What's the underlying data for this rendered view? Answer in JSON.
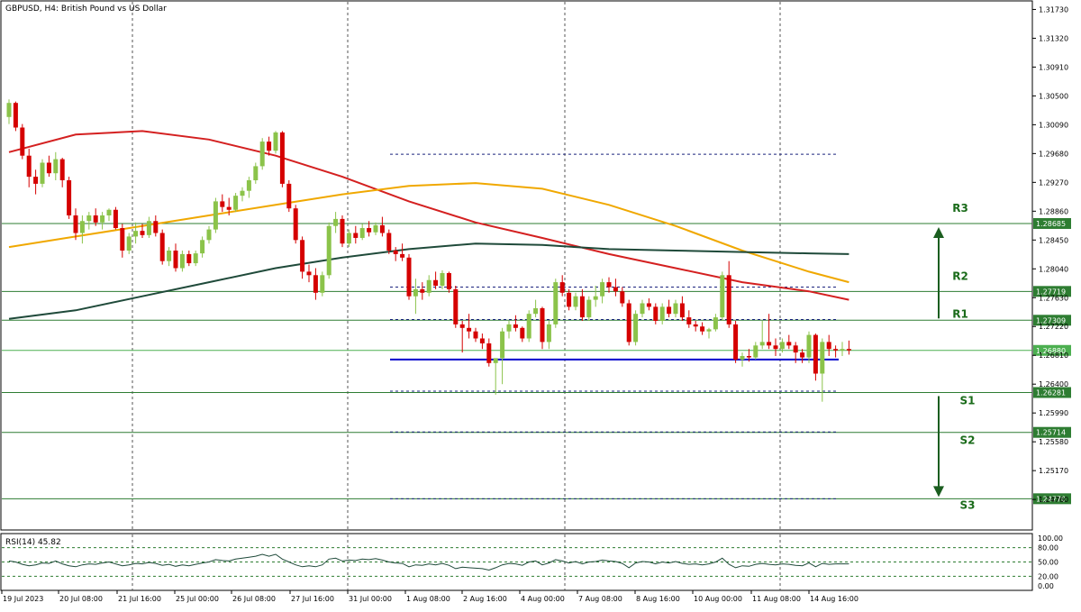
{
  "chart_data": {
    "type": "candlestick",
    "title": "GBPUSD, H4:  British Pound vs US Dollar",
    "symbol": "GBPUSD",
    "timeframe": "H4",
    "description": "British Pound vs US Dollar",
    "ylim": [
      1.243,
      1.318
    ],
    "y_ticks": [
      "1.31730",
      "1.31320",
      "1.30910",
      "1.30500",
      "1.30090",
      "1.29680",
      "1.29270",
      "1.28860",
      "1.28450",
      "1.28040",
      "1.27630",
      "1.27220",
      "1.26810",
      "1.26400",
      "1.25990",
      "1.25580",
      "1.25170",
      "1.24760"
    ],
    "x_ticks": [
      "19 Jul 2023",
      "20 Jul 08:00",
      "21 Jul 16:00",
      "25 Jul 00:00",
      "26 Jul 08:00",
      "27 Jul 16:00",
      "31 Jul 00:00",
      "1 Aug 08:00",
      "2 Aug 16:00",
      "4 Aug 00:00",
      "7 Aug 08:00",
      "8 Aug 16:00",
      "10 Aug 00:00",
      "11 Aug 08:00",
      "14 Aug 16:00"
    ],
    "current_price": "1.26880",
    "levels": [
      {
        "name": "R3",
        "price": 1.28685,
        "label": "1.28685"
      },
      {
        "name": "R2",
        "price": 1.27719,
        "label": "1.27719"
      },
      {
        "name": "R1",
        "price": 1.27309,
        "label": "1.27309"
      },
      {
        "name": "S1",
        "price": 1.26281,
        "label": "1.26281"
      },
      {
        "name": "S2",
        "price": 1.25714,
        "label": "1.25714"
      },
      {
        "name": "S3",
        "price": 1.2477,
        "label": "1.24770"
      }
    ],
    "range_support": 1.2675,
    "dotted_levels": [
      1.2967,
      1.2778,
      1.2732,
      1.263,
      1.2572,
      1.2477
    ],
    "candles": [
      [
        1.302,
        1.3045,
        1.301,
        1.304
      ],
      [
        1.304,
        1.3042,
        1.3,
        1.3005
      ],
      [
        1.3005,
        1.301,
        1.296,
        1.2965
      ],
      [
        1.2965,
        1.2975,
        1.292,
        1.2935
      ],
      [
        1.2935,
        1.2945,
        1.291,
        1.2925
      ],
      [
        1.2925,
        1.296,
        1.292,
        1.2955
      ],
      [
        1.2955,
        1.2965,
        1.2935,
        1.294
      ],
      [
        1.294,
        1.297,
        1.293,
        1.296
      ],
      [
        1.296,
        1.2962,
        1.292,
        1.293
      ],
      [
        1.293,
        1.2935,
        1.2875,
        1.288
      ],
      [
        1.288,
        1.289,
        1.2845,
        1.2855
      ],
      [
        1.2855,
        1.288,
        1.284,
        1.2872
      ],
      [
        1.2872,
        1.2885,
        1.286,
        1.288
      ],
      [
        1.288,
        1.289,
        1.2865,
        1.287
      ],
      [
        1.287,
        1.2885,
        1.286,
        1.288
      ],
      [
        1.288,
        1.289,
        1.2872,
        1.2888
      ],
      [
        1.2888,
        1.2892,
        1.286,
        1.2862
      ],
      [
        1.2862,
        1.2868,
        1.282,
        1.283
      ],
      [
        1.283,
        1.2855,
        1.2825,
        1.285
      ],
      [
        1.285,
        1.287,
        1.284,
        1.2858
      ],
      [
        1.2858,
        1.2868,
        1.2848,
        1.2852
      ],
      [
        1.2852,
        1.2878,
        1.2848,
        1.2872
      ],
      [
        1.2872,
        1.288,
        1.285,
        1.2855
      ],
      [
        1.2855,
        1.286,
        1.281,
        1.2815
      ],
      [
        1.2815,
        1.2835,
        1.2808,
        1.283
      ],
      [
        1.283,
        1.284,
        1.28,
        1.2805
      ],
      [
        1.2805,
        1.283,
        1.28,
        1.2825
      ],
      [
        1.2825,
        1.283,
        1.2808,
        1.2812
      ],
      [
        1.2812,
        1.283,
        1.2808,
        1.2826
      ],
      [
        1.2826,
        1.285,
        1.282,
        1.2845
      ],
      [
        1.2845,
        1.2865,
        1.284,
        1.286
      ],
      [
        1.286,
        1.2905,
        1.2855,
        1.29
      ],
      [
        1.29,
        1.291,
        1.2885,
        1.2892
      ],
      [
        1.2892,
        1.2905,
        1.288,
        1.2888
      ],
      [
        1.2888,
        1.2912,
        1.2885,
        1.2908
      ],
      [
        1.2908,
        1.292,
        1.29,
        1.2915
      ],
      [
        1.2915,
        1.2935,
        1.2905,
        1.293
      ],
      [
        1.293,
        1.2955,
        1.2925,
        1.295
      ],
      [
        1.295,
        1.299,
        1.2945,
        1.2985
      ],
      [
        1.2985,
        1.2992,
        1.2965,
        1.2972
      ],
      [
        1.2972,
        1.3,
        1.2968,
        1.2998
      ],
      [
        1.2998,
        1.3,
        1.292,
        1.2925
      ],
      [
        1.2925,
        1.293,
        1.2885,
        1.289
      ],
      [
        1.289,
        1.2895,
        1.284,
        1.2845
      ],
      [
        1.2845,
        1.285,
        1.279,
        1.28
      ],
      [
        1.28,
        1.281,
        1.2785,
        1.2795
      ],
      [
        1.2795,
        1.2805,
        1.276,
        1.277
      ],
      [
        1.277,
        1.28,
        1.2765,
        1.2795
      ],
      [
        1.2795,
        1.287,
        1.279,
        1.2865
      ],
      [
        1.2865,
        1.2885,
        1.2855,
        1.2875
      ],
      [
        1.2875,
        1.288,
        1.2835,
        1.284
      ],
      [
        1.284,
        1.286,
        1.2835,
        1.2855
      ],
      [
        1.2855,
        1.2865,
        1.284,
        1.2848
      ],
      [
        1.2848,
        1.2868,
        1.2845,
        1.2862
      ],
      [
        1.2862,
        1.2872,
        1.285,
        1.2856
      ],
      [
        1.2856,
        1.287,
        1.2852,
        1.2866
      ],
      [
        1.2866,
        1.2878,
        1.285,
        1.2855
      ],
      [
        1.2855,
        1.286,
        1.2825,
        1.283
      ],
      [
        1.283,
        1.2835,
        1.2815,
        1.2825
      ],
      [
        1.2825,
        1.284,
        1.2815,
        1.282
      ],
      [
        1.282,
        1.2825,
        1.276,
        1.2765
      ],
      [
        1.2765,
        1.279,
        1.274,
        1.2775
      ],
      [
        1.2775,
        1.2785,
        1.276,
        1.277
      ],
      [
        1.277,
        1.2795,
        1.2765,
        1.2788
      ],
      [
        1.2788,
        1.28,
        1.2775,
        1.278
      ],
      [
        1.278,
        1.2802,
        1.2775,
        1.2798
      ],
      [
        1.2798,
        1.28,
        1.277,
        1.2775
      ],
      [
        1.2775,
        1.278,
        1.272,
        1.2725
      ],
      [
        1.2725,
        1.273,
        1.2685,
        1.272
      ],
      [
        1.272,
        1.274,
        1.2705,
        1.2715
      ],
      [
        1.2715,
        1.272,
        1.27,
        1.2705
      ],
      [
        1.2705,
        1.2712,
        1.269,
        1.2698
      ],
      [
        1.2698,
        1.2705,
        1.2665,
        1.267
      ],
      [
        1.267,
        1.2675,
        1.2625,
        1.2677
      ],
      [
        1.2677,
        1.272,
        1.264,
        1.2715
      ],
      [
        1.2715,
        1.273,
        1.2705,
        1.2725
      ],
      [
        1.2725,
        1.2738,
        1.2715,
        1.272
      ],
      [
        1.272,
        1.2722,
        1.27,
        1.2705
      ],
      [
        1.2705,
        1.2745,
        1.27,
        1.274
      ],
      [
        1.274,
        1.276,
        1.2735,
        1.2748
      ],
      [
        1.2748,
        1.275,
        1.269,
        1.27
      ],
      [
        1.27,
        1.273,
        1.269,
        1.2725
      ],
      [
        1.2725,
        1.279,
        1.272,
        1.2785
      ],
      [
        1.2785,
        1.2795,
        1.2765,
        1.277
      ],
      [
        1.277,
        1.2775,
        1.2745,
        1.275
      ],
      [
        1.275,
        1.277,
        1.2745,
        1.2765
      ],
      [
        1.2765,
        1.2775,
        1.273,
        1.2735
      ],
      [
        1.2735,
        1.2765,
        1.273,
        1.276
      ],
      [
        1.276,
        1.278,
        1.275,
        1.2765
      ],
      [
        1.2765,
        1.279,
        1.2755,
        1.2785
      ],
      [
        1.2785,
        1.2792,
        1.277,
        1.2778
      ],
      [
        1.2778,
        1.279,
        1.2765,
        1.2772
      ],
      [
        1.2772,
        1.2778,
        1.275,
        1.2755
      ],
      [
        1.2755,
        1.276,
        1.2695,
        1.27
      ],
      [
        1.27,
        1.2745,
        1.2695,
        1.274
      ],
      [
        1.274,
        1.276,
        1.2735,
        1.2755
      ],
      [
        1.2755,
        1.2762,
        1.2745,
        1.275
      ],
      [
        1.275,
        1.2755,
        1.2725,
        1.273
      ],
      [
        1.273,
        1.2755,
        1.2725,
        1.275
      ],
      [
        1.275,
        1.276,
        1.2735,
        1.274
      ],
      [
        1.274,
        1.276,
        1.2735,
        1.2755
      ],
      [
        1.2755,
        1.2765,
        1.273,
        1.2735
      ],
      [
        1.2735,
        1.2745,
        1.272,
        1.2725
      ],
      [
        1.2725,
        1.273,
        1.2715,
        1.2722
      ],
      [
        1.2722,
        1.2728,
        1.271,
        1.2715
      ],
      [
        1.2715,
        1.272,
        1.2705,
        1.2718
      ],
      [
        1.2718,
        1.274,
        1.2715,
        1.2735
      ],
      [
        1.2735,
        1.28,
        1.273,
        1.2795
      ],
      [
        1.2795,
        1.2815,
        1.272,
        1.2725
      ],
      [
        1.2725,
        1.273,
        1.267,
        1.2675
      ],
      [
        1.2675,
        1.2685,
        1.2665,
        1.268
      ],
      [
        1.268,
        1.269,
        1.2672,
        1.2678
      ],
      [
        1.2678,
        1.27,
        1.2675,
        1.2695
      ],
      [
        1.2695,
        1.273,
        1.269,
        1.27
      ],
      [
        1.27,
        1.274,
        1.269,
        1.2695
      ],
      [
        1.2695,
        1.2705,
        1.268,
        1.269
      ],
      [
        1.269,
        1.2705,
        1.2685,
        1.27
      ],
      [
        1.27,
        1.271,
        1.269,
        1.2695
      ],
      [
        1.2695,
        1.27,
        1.267,
        1.2685
      ],
      [
        1.2685,
        1.269,
        1.267,
        1.2678
      ],
      [
        1.2678,
        1.2715,
        1.267,
        1.271
      ],
      [
        1.271,
        1.2712,
        1.2645,
        1.2655
      ],
      [
        1.2655,
        1.2705,
        1.2615,
        1.27
      ],
      [
        1.27,
        1.271,
        1.268,
        1.269
      ],
      [
        1.269,
        1.2695,
        1.2678,
        1.2688
      ],
      [
        1.2688,
        1.27,
        1.268,
        1.269
      ],
      [
        1.269,
        1.2702,
        1.2682,
        1.2688
      ]
    ],
    "moving_averages": [
      {
        "name": "MA red",
        "color": "#d42020",
        "points": [
          [
            0,
            1.297
          ],
          [
            10,
            1.2995
          ],
          [
            20,
            1.3
          ],
          [
            30,
            1.2988
          ],
          [
            40,
            1.2965
          ],
          [
            50,
            1.2935
          ],
          [
            60,
            1.29
          ],
          [
            70,
            1.287
          ],
          [
            80,
            1.2848
          ],
          [
            90,
            1.2825
          ],
          [
            100,
            1.2805
          ],
          [
            110,
            1.2785
          ],
          [
            120,
            1.2772
          ],
          [
            126,
            1.276
          ]
        ]
      },
      {
        "name": "MA orange",
        "color": "#f0a800",
        "points": [
          [
            0,
            1.2835
          ],
          [
            10,
            1.285
          ],
          [
            20,
            1.2865
          ],
          [
            30,
            1.288
          ],
          [
            40,
            1.2895
          ],
          [
            50,
            1.291
          ],
          [
            60,
            1.2922
          ],
          [
            70,
            1.2926
          ],
          [
            80,
            1.2918
          ],
          [
            90,
            1.2895
          ],
          [
            100,
            1.2865
          ],
          [
            110,
            1.283
          ],
          [
            120,
            1.28
          ],
          [
            126,
            1.2785
          ]
        ]
      },
      {
        "name": "MA dark",
        "color": "#1f4a3a",
        "points": [
          [
            0,
            1.2733
          ],
          [
            10,
            1.2745
          ],
          [
            20,
            1.2765
          ],
          [
            30,
            1.2785
          ],
          [
            40,
            1.2805
          ],
          [
            50,
            1.282
          ],
          [
            60,
            1.2832
          ],
          [
            70,
            1.284
          ],
          [
            80,
            1.2838
          ],
          [
            90,
            1.2832
          ],
          [
            100,
            1.283
          ],
          [
            110,
            1.2828
          ],
          [
            120,
            1.2826
          ],
          [
            126,
            1.2825
          ]
        ]
      }
    ],
    "rsi": {
      "label": "RSI(14) 45.82",
      "ticks": [
        "100.00",
        "80.00",
        "50.00",
        "20.00",
        "0.00"
      ],
      "levels": [
        80,
        50,
        20
      ],
      "values": [
        52,
        50,
        45,
        42,
        44,
        48,
        47,
        52,
        46,
        42,
        40,
        44,
        46,
        45,
        48,
        50,
        46,
        42,
        44,
        47,
        46,
        49,
        47,
        43,
        45,
        41,
        44,
        42,
        45,
        48,
        50,
        55,
        53,
        52,
        56,
        58,
        60,
        62,
        66,
        62,
        66,
        56,
        50,
        44,
        40,
        42,
        40,
        44,
        56,
        58,
        52,
        54,
        53,
        56,
        55,
        57,
        54,
        50,
        48,
        47,
        40,
        44,
        43,
        46,
        44,
        47,
        43,
        36,
        39,
        38,
        37,
        36,
        33,
        38,
        44,
        47,
        46,
        43,
        50,
        52,
        44,
        48,
        55,
        52,
        48,
        51,
        46,
        50,
        51,
        54,
        52,
        51,
        47,
        38,
        48,
        51,
        50,
        46,
        50,
        48,
        51,
        47,
        45,
        46,
        44,
        46,
        50,
        58,
        45,
        38,
        42,
        41,
        45,
        47,
        45,
        44,
        46,
        45,
        43,
        42,
        48,
        40,
        47,
        45,
        46,
        46,
        46
      ]
    }
  }
}
